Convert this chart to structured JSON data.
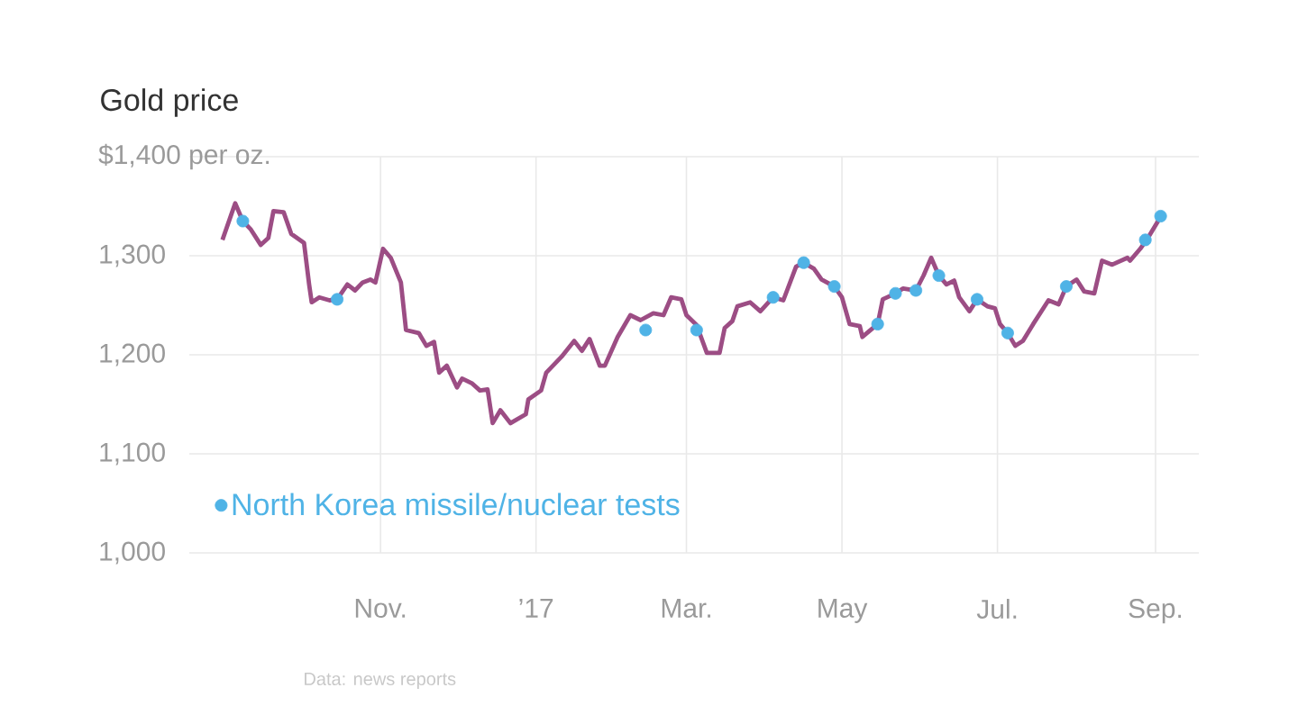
{
  "chart_data": {
    "type": "line",
    "title": "Gold price",
    "annotations": [
      "Data: news reports"
    ],
    "xlim": [
      "2016-08-18",
      "2017-09-18"
    ],
    "xticks": [
      {
        "value": "2016-11-01",
        "label": "Nov."
      },
      {
        "value": "2017-01-01",
        "label": "’17"
      },
      {
        "value": "2017-03-01",
        "label": "Mar."
      },
      {
        "value": "2017-05-01",
        "label": "May"
      },
      {
        "value": "2017-07-01",
        "label": "Jul."
      },
      {
        "value": "2017-09-01",
        "label": "Sep."
      }
    ],
    "ylim": [
      1000,
      1400
    ],
    "yticks": [
      {
        "value": 1000,
        "label": "1,000"
      },
      {
        "value": 1100,
        "label": "1,100"
      },
      {
        "value": 1200,
        "label": "1,200"
      },
      {
        "value": 1300,
        "label": "1,300"
      },
      {
        "value": 1400,
        "label": "$1,400 per oz."
      }
    ],
    "grid": true,
    "legend": "bottom left",
    "series": [
      {
        "type": "line",
        "color": "#9c4d84",
        "x": [
          "2016-08-31",
          "2016-09-05",
          "2016-09-08",
          "2016-09-11",
          "2016-09-15",
          "2016-09-18",
          "2016-09-20",
          "2016-09-24",
          "2016-09-27",
          "2016-10-02",
          "2016-10-04",
          "2016-10-05",
          "2016-10-08",
          "2016-10-12",
          "2016-10-15",
          "2016-10-19",
          "2016-10-22",
          "2016-10-25",
          "2016-10-28",
          "2016-10-30",
          "2016-11-02",
          "2016-11-05",
          "2016-11-09",
          "2016-11-11",
          "2016-11-16",
          "2016-11-19",
          "2016-11-22",
          "2016-11-24",
          "2016-11-27",
          "2016-12-01",
          "2016-12-03",
          "2016-12-07",
          "2016-12-10",
          "2016-12-13",
          "2016-12-15",
          "2016-12-18",
          "2016-12-22",
          "2016-12-28",
          "2016-12-29",
          "2017-01-03",
          "2017-01-05",
          "2017-01-11",
          "2017-01-16",
          "2017-01-19",
          "2017-01-22",
          "2017-01-26",
          "2017-01-28",
          "2017-02-02",
          "2017-02-07",
          "2017-02-11",
          "2017-02-16",
          "2017-02-20",
          "2017-02-23",
          "2017-02-27",
          "2017-03-01",
          "2017-03-05",
          "2017-03-09",
          "2017-03-14",
          "2017-03-16",
          "2017-03-19",
          "2017-03-21",
          "2017-03-26",
          "2017-03-30",
          "2017-04-04",
          "2017-04-08",
          "2017-04-13",
          "2017-04-16",
          "2017-04-20",
          "2017-04-23",
          "2017-04-28",
          "2017-05-01",
          "2017-05-04",
          "2017-05-08",
          "2017-05-09",
          "2017-05-15",
          "2017-05-17",
          "2017-05-22",
          "2017-05-25",
          "2017-05-30",
          "2017-06-02",
          "2017-06-05",
          "2017-06-08",
          "2017-06-11",
          "2017-06-14",
          "2017-06-16",
          "2017-06-20",
          "2017-06-23",
          "2017-06-27",
          "2017-06-30",
          "2017-07-02",
          "2017-07-05",
          "2017-07-08",
          "2017-07-11",
          "2017-07-15",
          "2017-07-21",
          "2017-07-25",
          "2017-07-28",
          "2017-08-01",
          "2017-08-04",
          "2017-08-08",
          "2017-08-11",
          "2017-08-15",
          "2017-08-21",
          "2017-08-22",
          "2017-08-26",
          "2017-08-29",
          "2017-09-02",
          "2017-09-03"
        ],
        "values": [
          1316,
          1353,
          1335,
          1327,
          1311,
          1318,
          1345,
          1344,
          1322,
          1313,
          1271,
          1253,
          1258,
          1255,
          1256,
          1271,
          1265,
          1273,
          1276,
          1273,
          1307,
          1298,
          1273,
          1225,
          1222,
          1209,
          1213,
          1182,
          1189,
          1167,
          1176,
          1171,
          1164,
          1165,
          1131,
          1144,
          1131,
          1140,
          1155,
          1164,
          1182,
          1198,
          1214,
          1204,
          1216,
          1189,
          1189,
          1218,
          1240,
          1235,
          1242,
          1240,
          1258,
          1256,
          1240,
          1230,
          1202,
          1202,
          1227,
          1234,
          1249,
          1253,
          1244,
          1258,
          1255,
          1289,
          1293,
          1287,
          1276,
          1269,
          1258,
          1231,
          1229,
          1218,
          1231,
          1256,
          1262,
          1267,
          1265,
          1280,
          1298,
          1280,
          1271,
          1275,
          1258,
          1244,
          1256,
          1249,
          1247,
          1231,
          1222,
          1209,
          1214,
          1231,
          1255,
          1251,
          1269,
          1276,
          1264,
          1262,
          1295,
          1291,
          1298,
          1295,
          1307,
          1318,
          1335,
          1340
        ]
      },
      {
        "type": "scatter",
        "name": "North Korea missile/nuclear tests",
        "color": "#4fb3e6",
        "x": [
          "2016-09-08",
          "2016-10-15",
          "2017-02-13",
          "2017-03-05",
          "2017-04-04",
          "2017-04-16",
          "2017-04-28",
          "2017-05-15",
          "2017-05-22",
          "2017-05-30",
          "2017-06-08",
          "2017-06-23",
          "2017-07-05",
          "2017-07-28",
          "2017-08-28",
          "2017-09-03"
        ],
        "values": [
          1335,
          1256,
          1225,
          1225,
          1258,
          1293,
          1269,
          1231,
          1262,
          1265,
          1280,
          1256,
          1222,
          1269,
          1316,
          1340
        ]
      }
    ]
  }
}
